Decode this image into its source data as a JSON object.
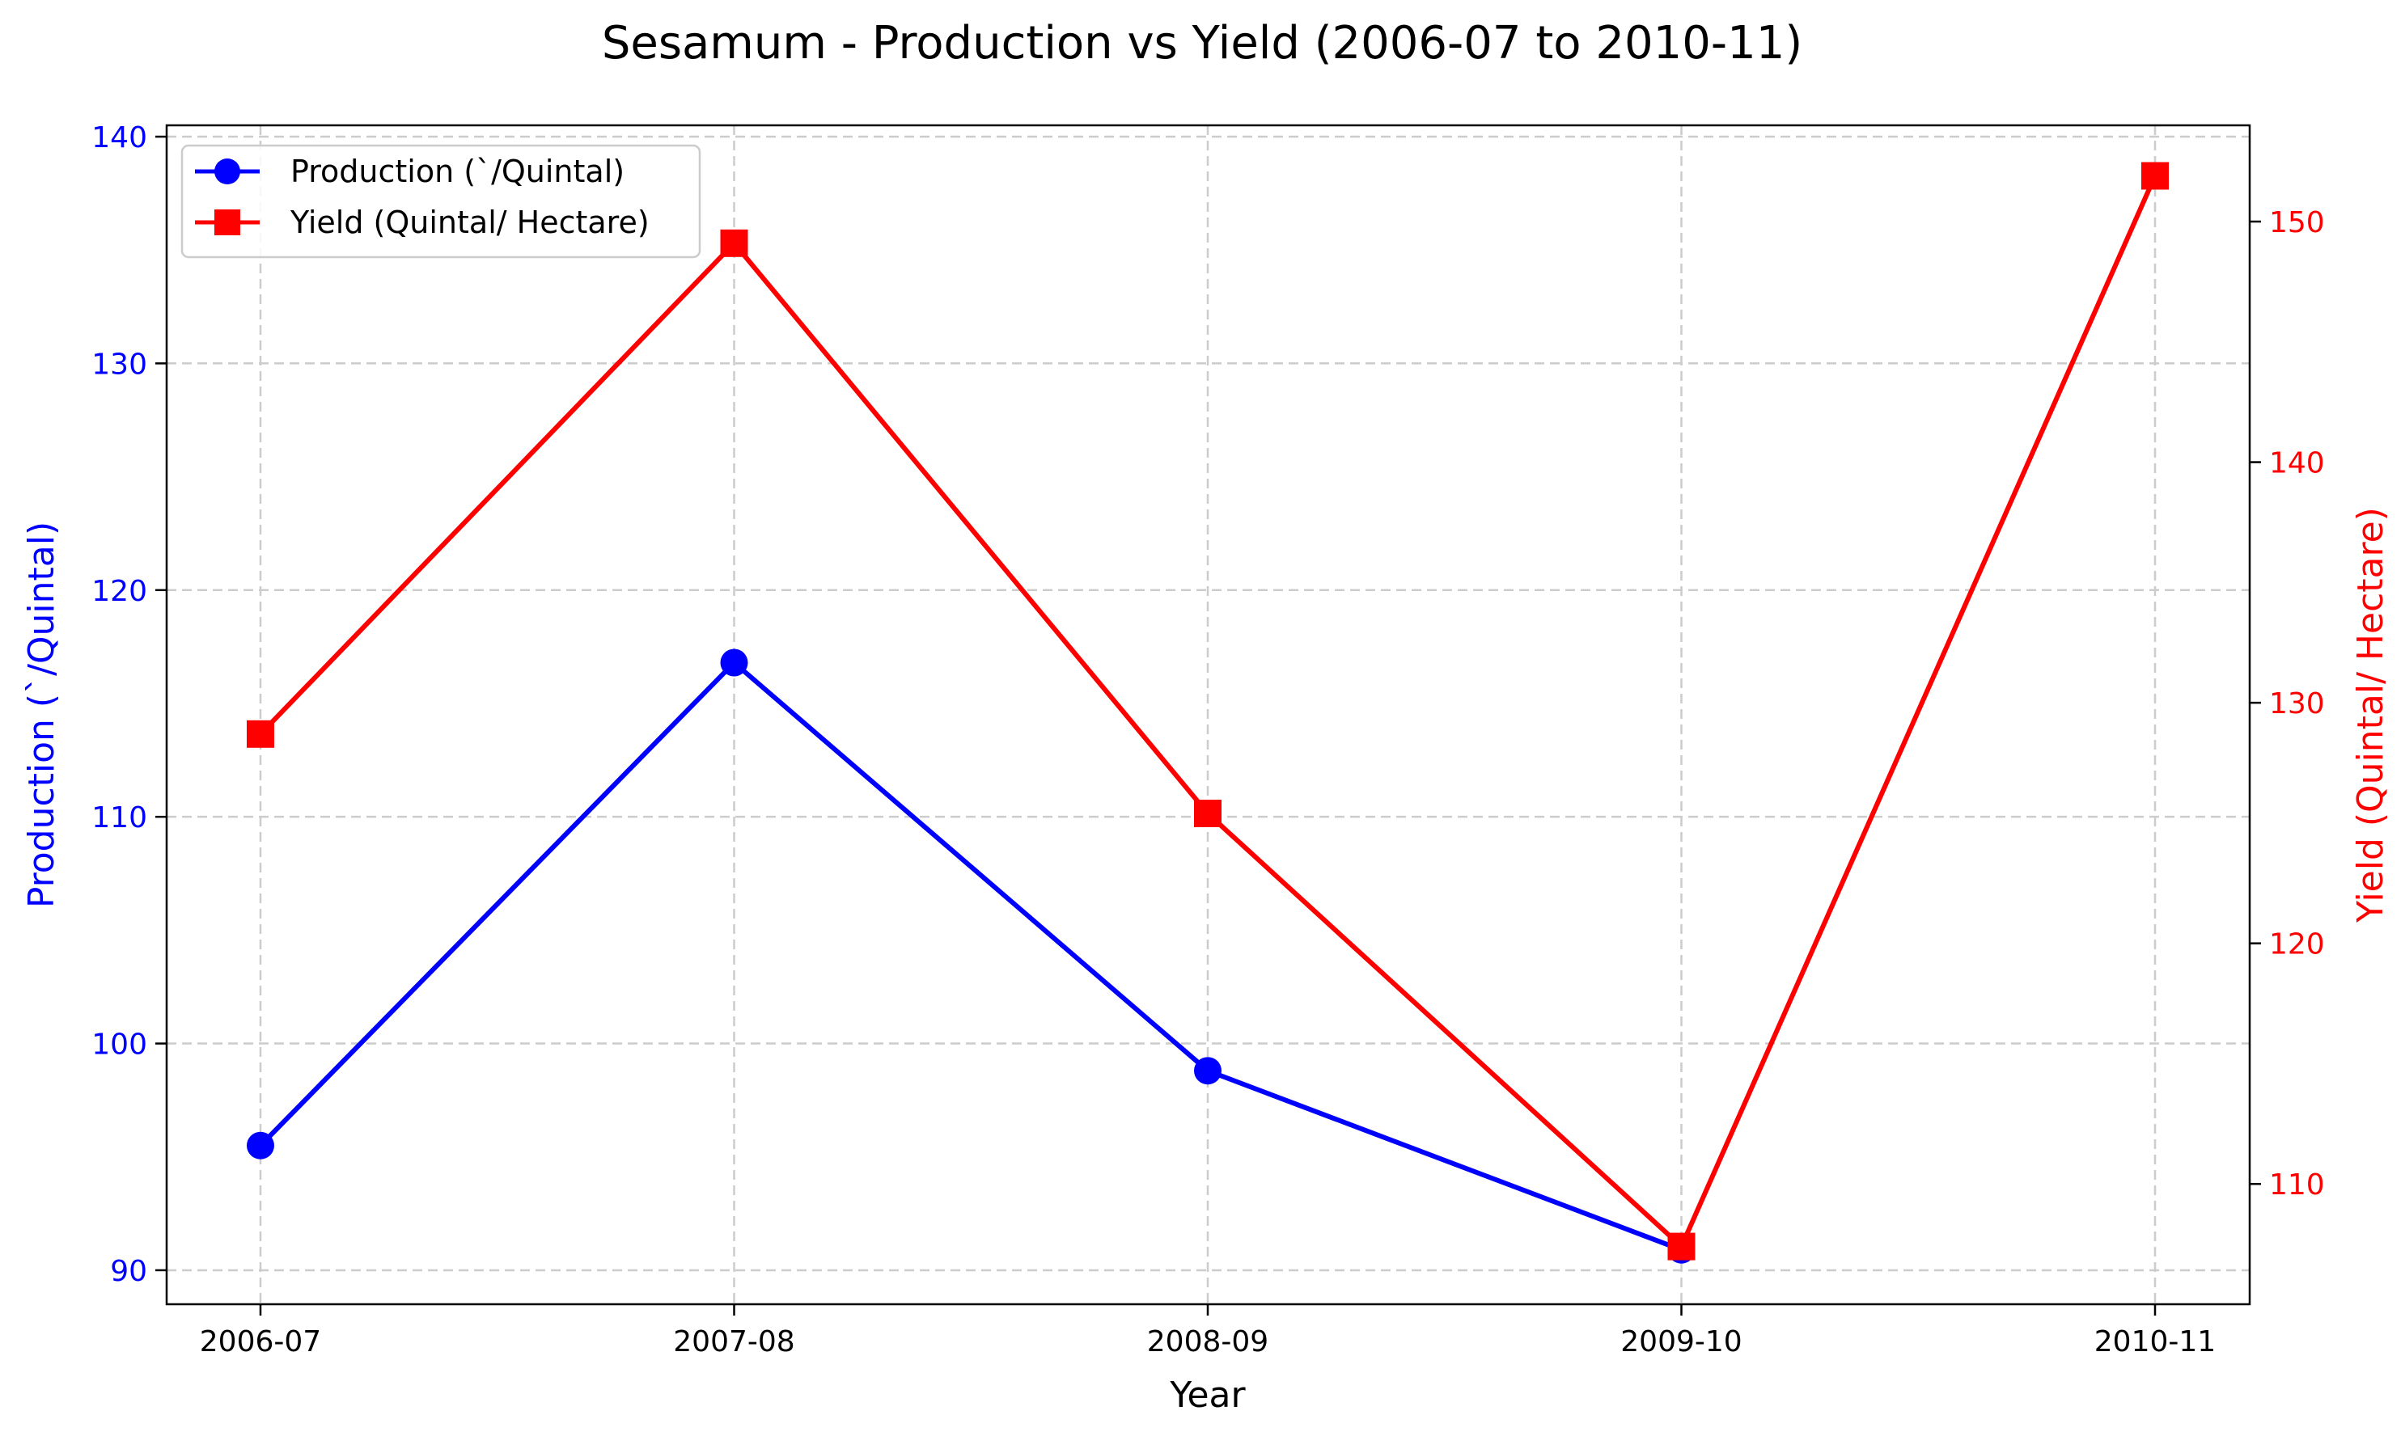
{
  "chart_data": {
    "type": "line",
    "title": "Sesamum - Production vs Yield (2006-07 to 2010-11)",
    "xlabel": "Year",
    "ylabel_left": "Production (`/Quintal)",
    "ylabel_right": "Yield (Quintal/ Hectare)",
    "categories": [
      "2006-07",
      "2007-08",
      "2008-09",
      "2009-10",
      "2010-11"
    ],
    "ylim_left": [
      88.5,
      140.5
    ],
    "ylim_right": [
      105,
      154
    ],
    "yticks_left": [
      90,
      100,
      110,
      120,
      130,
      140
    ],
    "yticks_right": [
      110,
      120,
      130,
      140,
      150
    ],
    "grid": true,
    "legend_position": "top-left",
    "series": [
      {
        "name": "Production (`/Quintal)",
        "axis": "left",
        "color": "#0000ff",
        "marker": "circle",
        "values": [
          95.5,
          116.8,
          98.8,
          90.9,
          null
        ]
      },
      {
        "name": "Yield (Quintal/ Hectare)",
        "axis": "right",
        "color": "#ff0000",
        "marker": "square",
        "values": [
          128.7,
          149.1,
          125.4,
          107.4,
          151.9
        ]
      }
    ]
  }
}
